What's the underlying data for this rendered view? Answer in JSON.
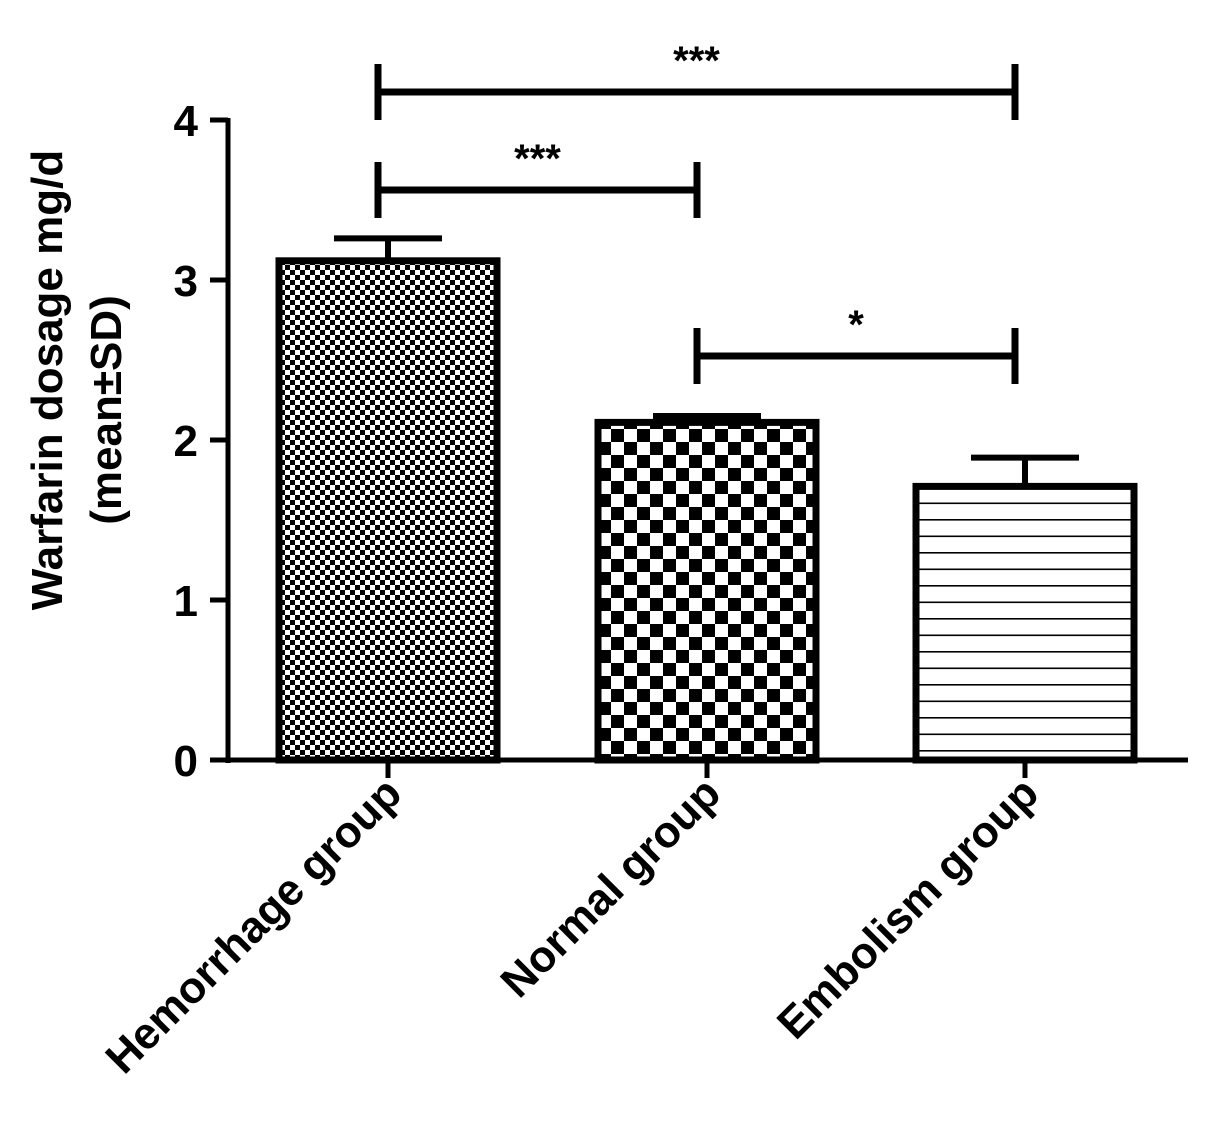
{
  "chart_data": {
    "type": "bar",
    "categories": [
      "Hemorrhage group",
      "Normal group",
      "Embolism group"
    ],
    "values": [
      3.12,
      2.11,
      1.71
    ],
    "error_sd": [
      0.14,
      0.04,
      0.18
    ],
    "ylabel_lines": [
      "Warfarin dosage mg/d",
      "(mean±SD)"
    ],
    "xlabel": "",
    "ylim": [
      0,
      4
    ],
    "yticks": [
      "0",
      "1",
      "2",
      "3",
      "4"
    ],
    "fill_patterns": [
      "fine-checker",
      "coarse-checker",
      "horizontal-lines"
    ],
    "grid": false,
    "significance": [
      {
        "from": "Hemorrhage group",
        "to": "Embolism group",
        "label": "***"
      },
      {
        "from": "Hemorrhage group",
        "to": "Normal group",
        "label": "***"
      },
      {
        "from": "Normal group",
        "to": "Embolism group",
        "label": "*"
      }
    ],
    "colors": {
      "ink": "#000000",
      "background": "#ffffff"
    }
  }
}
